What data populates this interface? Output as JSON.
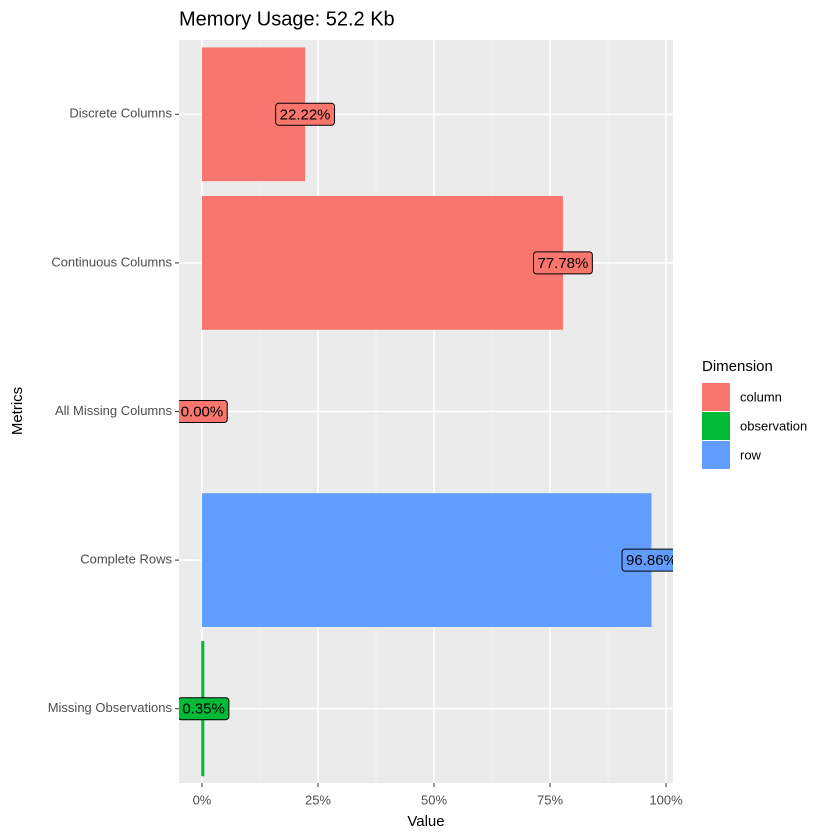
{
  "chart_data": {
    "type": "bar",
    "orientation": "horizontal",
    "title": "Memory Usage: 52.2 Kb",
    "x_label": "Value",
    "y_label": "Metrics",
    "legend_title": "Dimension",
    "categories": [
      "Discrete Columns",
      "Continuous Columns",
      "All Missing Columns",
      "Complete Rows",
      "Missing Observations"
    ],
    "series": [
      {
        "name": "column",
        "color": "#f8766d",
        "values": [
          22.22,
          77.78,
          0,
          null,
          null
        ],
        "value_labels": [
          "22.22%",
          "77.78%",
          "0.00%",
          null,
          null
        ]
      },
      {
        "name": "observation",
        "color": "#00ba38",
        "values": [
          null,
          null,
          null,
          null,
          0.35
        ],
        "value_labels": [
          null,
          null,
          null,
          null,
          "0.35%"
        ]
      },
      {
        "name": "row",
        "color": "#619cff",
        "values": [
          null,
          null,
          null,
          96.86,
          null
        ],
        "value_labels": [
          null,
          null,
          null,
          "96.86%",
          null
        ]
      }
    ],
    "xlim": [
      -4.95,
      101.5
    ],
    "xticks": [
      {
        "value": 0,
        "label": "0%"
      },
      {
        "value": 25,
        "label": "25%"
      },
      {
        "value": 50,
        "label": "50%"
      },
      {
        "value": 75,
        "label": "75%"
      },
      {
        "value": 100,
        "label": "100%"
      }
    ],
    "grid": true
  }
}
